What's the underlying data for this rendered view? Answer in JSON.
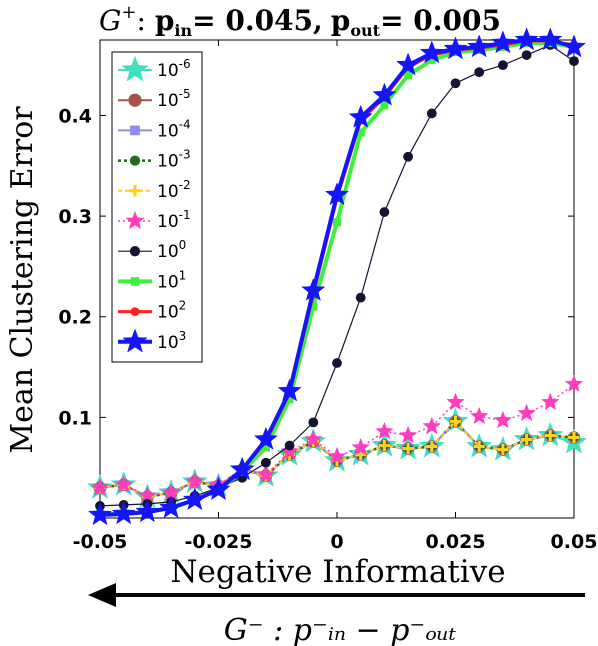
{
  "chart_data": {
    "type": "line",
    "title_main": "G",
    "title_sup": "+",
    "title_rest": ": ",
    "title_pin_label": "p",
    "title_pin_sub": "in",
    "title_pin_value": "= 0.045,",
    "title_pout_label": "p",
    "title_pout_sub": "out",
    "title_pout_value": "= 0.005",
    "ylabel": "Mean Clustering Error",
    "xlabel": "Negative Informative",
    "arrow_label": "G⁻ : p⁻ᵢₙ − p⁻ₒᵤₜ",
    "xlim": [
      -0.05,
      0.05
    ],
    "ylim": [
      0,
      0.475
    ],
    "xticks": [
      "-0.05",
      "-0.025",
      "0",
      "0.025",
      "0.05"
    ],
    "yticks": [
      "0.1",
      "0.2",
      "0.3",
      "0.4"
    ],
    "x": [
      -0.05,
      -0.045,
      -0.04,
      -0.035,
      -0.03,
      -0.025,
      -0.02,
      -0.015,
      -0.01,
      -0.005,
      0.0,
      0.005,
      0.01,
      0.015,
      0.02,
      0.025,
      0.03,
      0.035,
      0.04,
      0.045,
      0.05
    ],
    "series": [
      {
        "name": "10^-6",
        "base": "10",
        "exp": "-6",
        "color": "#40e0c0",
        "marker": "star",
        "dash": "none",
        "width": 2,
        "values": [
          0.03,
          0.033,
          0.021,
          0.025,
          0.036,
          0.032,
          0.048,
          0.042,
          0.063,
          0.076,
          0.057,
          0.063,
          0.072,
          0.069,
          0.071,
          0.096,
          0.071,
          0.068,
          0.078,
          0.082,
          0.075
        ]
      },
      {
        "name": "10^-5",
        "base": "10",
        "exp": "-5",
        "color": "#a65244",
        "marker": "circle",
        "dash": "none",
        "width": 2,
        "values": [
          0.03,
          0.033,
          0.021,
          0.025,
          0.036,
          0.032,
          0.048,
          0.042,
          0.063,
          0.076,
          0.057,
          0.063,
          0.072,
          0.069,
          0.071,
          0.096,
          0.071,
          0.068,
          0.078,
          0.082,
          0.08
        ]
      },
      {
        "name": "10^-4",
        "base": "10",
        "exp": "-4",
        "color": "#8c8cf2",
        "marker": "square",
        "dash": "none",
        "width": 2,
        "values": [
          0.03,
          0.033,
          0.021,
          0.025,
          0.036,
          0.032,
          0.048,
          0.042,
          0.063,
          0.076,
          0.057,
          0.063,
          0.072,
          0.069,
          0.071,
          0.096,
          0.071,
          0.068,
          0.078,
          0.082,
          0.08
        ]
      },
      {
        "name": "10^-3",
        "base": "10",
        "exp": "-3",
        "color": "#1f6b1f",
        "marker": "circle",
        "dash": "3,3",
        "width": 2.5,
        "values": [
          0.03,
          0.033,
          0.021,
          0.025,
          0.036,
          0.032,
          0.048,
          0.042,
          0.063,
          0.076,
          0.057,
          0.063,
          0.072,
          0.069,
          0.071,
          0.096,
          0.071,
          0.068,
          0.078,
          0.082,
          0.08
        ]
      },
      {
        "name": "10^-2",
        "base": "10",
        "exp": "-2",
        "color": "#ffd21a",
        "marker": "plus",
        "dash": "4,3",
        "width": 2,
        "values": [
          0.03,
          0.033,
          0.021,
          0.025,
          0.036,
          0.032,
          0.048,
          0.042,
          0.063,
          0.076,
          0.057,
          0.063,
          0.072,
          0.069,
          0.071,
          0.096,
          0.071,
          0.068,
          0.078,
          0.082,
          0.08
        ]
      },
      {
        "name": "10^-1",
        "base": "10",
        "exp": "-1",
        "color": "#ff3cbe",
        "marker": "star",
        "dash": "2,3",
        "width": 1.5,
        "values": [
          0.03,
          0.033,
          0.022,
          0.025,
          0.036,
          0.033,
          0.049,
          0.043,
          0.066,
          0.078,
          0.061,
          0.07,
          0.086,
          0.082,
          0.091,
          0.115,
          0.101,
          0.097,
          0.104,
          0.115,
          0.133
        ]
      },
      {
        "name": "10^0",
        "base": "10",
        "exp": "0",
        "color": "#141432",
        "marker": "circle",
        "dash": "none",
        "width": 1.2,
        "values": [
          0.012,
          0.013,
          0.014,
          0.016,
          0.022,
          0.03,
          0.04,
          0.055,
          0.072,
          0.095,
          0.154,
          0.219,
          0.304,
          0.359,
          0.402,
          0.432,
          0.443,
          0.45,
          0.46,
          0.47,
          0.454
        ]
      },
      {
        "name": "10^1",
        "base": "10",
        "exp": "1",
        "color": "#3cf03c",
        "marker": "square",
        "dash": "none",
        "width": 4,
        "values": [
          0.004,
          0.004,
          0.006,
          0.01,
          0.018,
          0.028,
          0.046,
          0.07,
          0.118,
          0.21,
          0.294,
          0.383,
          0.41,
          0.44,
          0.455,
          0.463,
          0.465,
          0.468,
          0.472,
          0.472,
          0.468
        ]
      },
      {
        "name": "10^2",
        "base": "10",
        "exp": "2",
        "color": "#ff2020",
        "marker": "circle",
        "dash": "none",
        "width": 3,
        "values": [
          0.004,
          0.004,
          0.006,
          0.01,
          0.018,
          0.028,
          0.048,
          0.076,
          0.124,
          0.222,
          0.318,
          0.395,
          0.418,
          0.448,
          0.46,
          0.465,
          0.467,
          0.47,
          0.474,
          0.474,
          0.47
        ]
      },
      {
        "name": "10^3",
        "base": "10",
        "exp": "3",
        "color": "#1414ff",
        "marker": "star",
        "dash": "none",
        "width": 4,
        "values": [
          0.003,
          0.004,
          0.006,
          0.01,
          0.018,
          0.028,
          0.048,
          0.078,
          0.126,
          0.226,
          0.321,
          0.398,
          0.42,
          0.45,
          0.462,
          0.466,
          0.468,
          0.472,
          0.475,
          0.475,
          0.468
        ]
      }
    ],
    "legend_placement": "top-left",
    "grid": false
  }
}
